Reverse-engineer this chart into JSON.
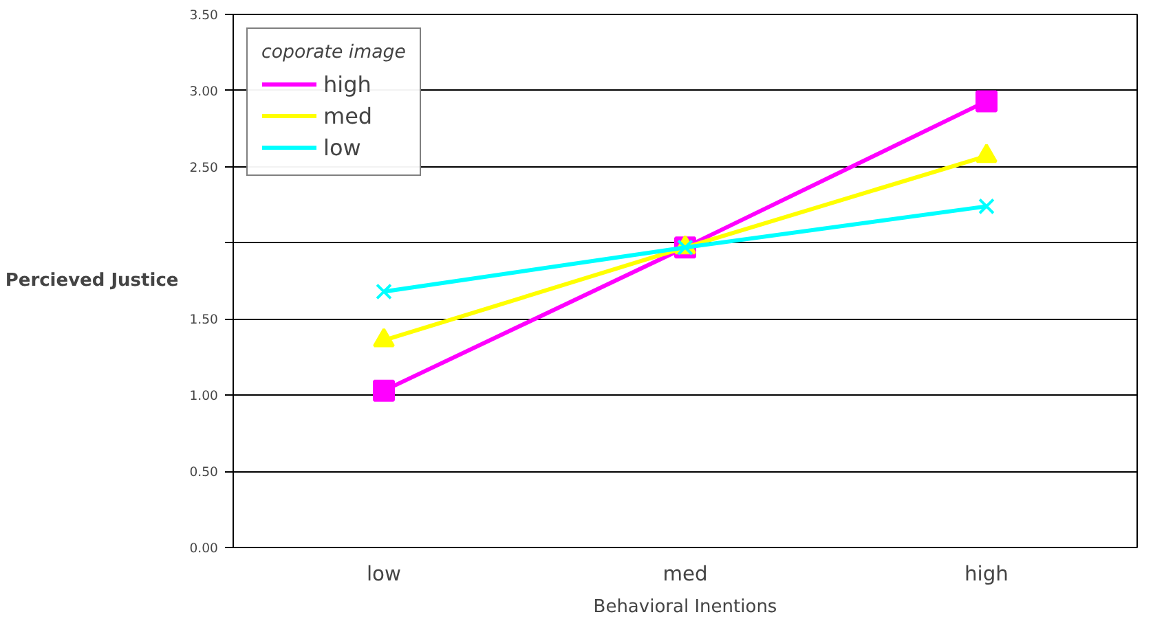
{
  "chart_data": {
    "type": "line",
    "xlabel": "Behavioral Inentions",
    "ylabel": "Percieved Justice",
    "legend_title": "coporate image",
    "categories": [
      "low",
      "med",
      "high"
    ],
    "series": [
      {
        "name": "high",
        "color": "#ff00ff",
        "marker": "square",
        "values": [
          1.03,
          1.97,
          2.93
        ]
      },
      {
        "name": "med",
        "color": "#ffff00",
        "marker": "triangle",
        "values": [
          1.36,
          1.97,
          2.57
        ]
      },
      {
        "name": "low",
        "color": "#00ffff",
        "marker": "cross",
        "values": [
          1.68,
          1.97,
          2.24
        ]
      }
    ],
    "ylim": [
      0,
      3.5
    ],
    "yticks": [
      {
        "value": 0,
        "label": "0.00"
      },
      {
        "value": 0.5,
        "label": "0.50"
      },
      {
        "value": 1,
        "label": "1.00"
      },
      {
        "value": 1.5,
        "label": "1.50"
      },
      {
        "value": 2,
        "label": null
      },
      {
        "value": 2.5,
        "label": "2.50"
      },
      {
        "value": 3,
        "label": "3.00"
      },
      {
        "value": 3.5,
        "label": "3.50"
      }
    ],
    "grid": "y",
    "legend": "top left",
    "line_style": "solid"
  }
}
